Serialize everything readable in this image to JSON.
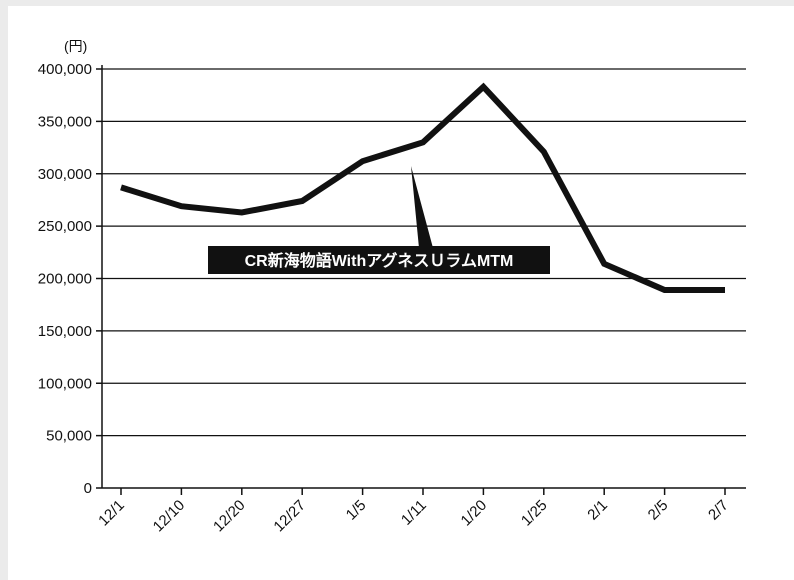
{
  "chart_data": {
    "type": "line",
    "title": "",
    "xlabel": "",
    "ylabel": "(円)",
    "categories": [
      "12/1",
      "12/10",
      "12/20",
      "12/27",
      "1/5",
      "1/11",
      "1/20",
      "1/25",
      "2/1",
      "2/5",
      "2/7"
    ],
    "series": [
      {
        "values": [
          287000,
          269000,
          263000,
          274000,
          312000,
          330000,
          383000,
          321000,
          214000,
          189000,
          189000
        ]
      }
    ],
    "yticks": [
      0,
      50000,
      100000,
      150000,
      200000,
      250000,
      300000,
      350000,
      400000
    ],
    "ytick_labels": [
      "0",
      "50,000",
      "100,000",
      "150,000",
      "200,000",
      "250,000",
      "300,000",
      "350,000",
      "400,000"
    ],
    "ylim": [
      0,
      400000
    ],
    "grid": "horizontal",
    "annotation": {
      "text": "CR新海物語WithアグネスＵラムMTM",
      "points_to": "1/11"
    },
    "colors": {
      "line": "#111111",
      "grid": "#111111",
      "callout_bg": "#111111",
      "callout_text": "#ffffff"
    }
  }
}
